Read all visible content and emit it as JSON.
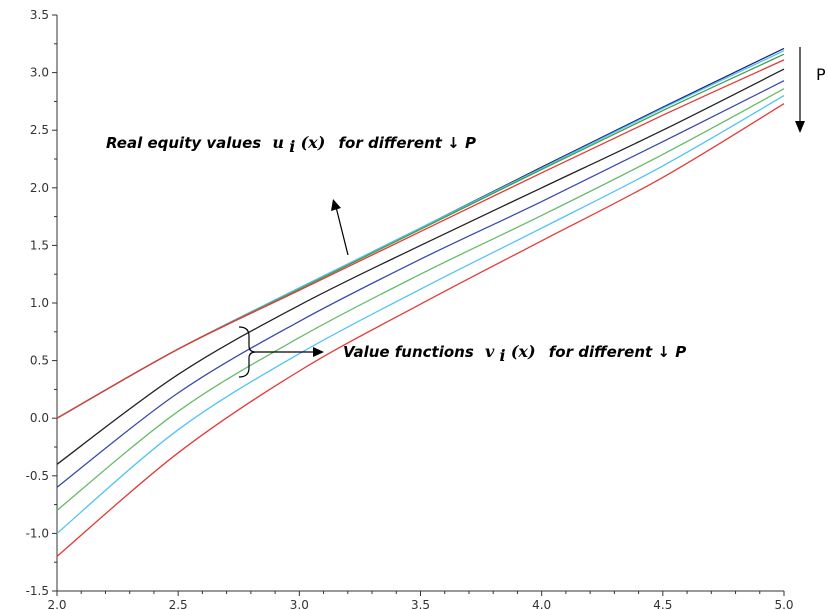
{
  "chart_data": {
    "type": "line",
    "title": "",
    "xlabel": "",
    "ylabel": "",
    "xlim": [
      2.0,
      5.0
    ],
    "ylim": [
      -1.5,
      3.5
    ],
    "x_ticks": [
      "2.0",
      "2.5",
      "3.0",
      "3.5",
      "4.0",
      "4.5",
      "5.0"
    ],
    "y_ticks": [
      "-1.5",
      "-1.0",
      "-0.5",
      "0.0",
      "0.5",
      "1.0",
      "1.5",
      "2.0",
      "2.5",
      "3.0",
      "3.5"
    ],
    "x": [
      2.0,
      2.5,
      3.0,
      3.5,
      4.0,
      4.5,
      5.0
    ],
    "grid": false,
    "legend": "none",
    "series": [
      {
        "color": "#1a237e",
        "values": [
          0.0,
          0.6,
          1.13,
          1.65,
          2.18,
          2.7,
          3.21
        ]
      },
      {
        "color": "#4fc3f7",
        "values": [
          0.0,
          0.6,
          1.13,
          1.65,
          2.17,
          2.69,
          3.19
        ]
      },
      {
        "color": "#43a047",
        "values": [
          0.0,
          0.6,
          1.12,
          1.64,
          2.16,
          2.67,
          3.16
        ]
      },
      {
        "color": "#e53935",
        "values": [
          0.0,
          0.6,
          1.11,
          1.62,
          2.13,
          2.63,
          3.11
        ]
      },
      {
        "color": "#222222",
        "values": [
          -0.4,
          0.38,
          0.98,
          1.5,
          2.0,
          2.5,
          3.03
        ]
      },
      {
        "color": "#3949ab",
        "values": [
          -0.6,
          0.22,
          0.84,
          1.38,
          1.88,
          2.4,
          2.93
        ]
      },
      {
        "color": "#66bb6a",
        "values": [
          -0.8,
          0.06,
          0.7,
          1.25,
          1.76,
          2.29,
          2.86
        ]
      },
      {
        "color": "#4fc3f7",
        "values": [
          -1.0,
          -0.1,
          0.56,
          1.12,
          1.65,
          2.19,
          2.8
        ]
      },
      {
        "color": "#e53935",
        "values": [
          -1.2,
          -0.3,
          0.41,
          0.99,
          1.54,
          2.09,
          2.73
        ]
      }
    ],
    "annotations": {
      "real_label": "Real equity values",
      "real_func": "u",
      "real_sub": "i",
      "real_arg": "(x)",
      "real_suffix": "for different ↓ P",
      "value_label": "Value  functions",
      "value_func": "v",
      "value_sub": "i",
      "value_arg": "(x)",
      "value_suffix": "for different  ↓  P",
      "p_label": "P"
    }
  }
}
